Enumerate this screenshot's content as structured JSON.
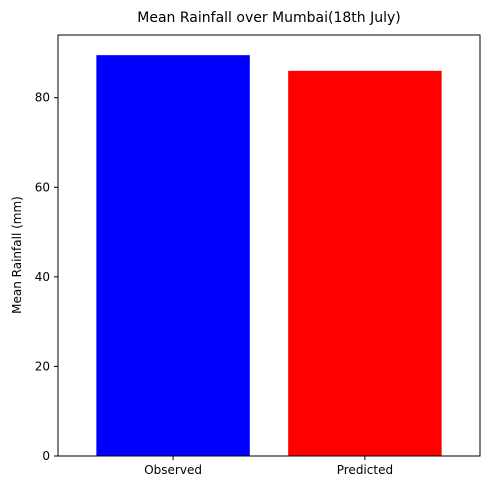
{
  "chart_data": {
    "type": "bar",
    "title": "Mean Rainfall over Mumbai(18th July)",
    "xlabel": "",
    "ylabel": "Mean Rainfall (mm)",
    "categories": [
      "Observed",
      "Predicted"
    ],
    "values": [
      89.5,
      86.0
    ],
    "colors": [
      "#0000ff",
      "#ff0000"
    ],
    "ylim": [
      0,
      94
    ],
    "yticks": [
      0,
      20,
      40,
      60,
      80
    ],
    "ytick_labels": [
      "0",
      "20",
      "40",
      "60",
      "80"
    ],
    "grid": false,
    "legend": "none"
  }
}
